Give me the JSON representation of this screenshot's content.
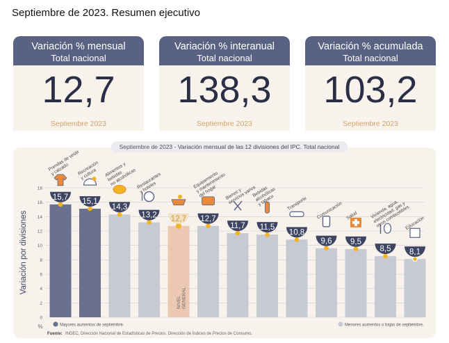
{
  "page_title": "Septiembre de 2023. Resumen ejecutivo",
  "cards": [
    {
      "title": "Variación % mensual",
      "subtitle": "Total nacional",
      "value": "12,7",
      "period": "Septiembre 2023"
    },
    {
      "title": "Variación % interanual",
      "subtitle": "Total nacional",
      "value": "138,3",
      "period": "Septiembre 2023"
    },
    {
      "title": "Variación % acumulada",
      "subtitle": "Total nacional",
      "value": "103,2",
      "period": "Septiembre 2023"
    }
  ],
  "chart_header": {
    "period": "Septiembre de 2023",
    "separator": " - ",
    "text": "Variación mensual de las 12 divisiones del IPC. Total nacional"
  },
  "chart_data": {
    "type": "bar",
    "title": "Septiembre de 2023 - Variación mensual de las 12 divisiones del IPC. Total nacional",
    "ylabel": "Variación por divisiones",
    "yunit": "%",
    "ylim": [
      0,
      18
    ],
    "yticks": [
      0,
      2,
      4,
      6,
      8,
      10,
      12,
      14,
      16,
      18
    ],
    "grid": true,
    "categories": [
      "Prendas de vestir y calzado",
      "Recreación y cultura",
      "Alimentos y bebidas no alcohólicas",
      "Restaurantes y hoteles",
      "NIVEL GENERAL",
      "Equipamiento y mantenimiento del hogar",
      "Bienes y servicios varios",
      "Bebidas alcohólicas y tabaco",
      "Transporte",
      "Comunicación",
      "Salud",
      "Vivienda, agua, electricidad, gas y otros combustibles",
      "Educación"
    ],
    "label_lines": [
      [
        "Prendas de vestir",
        "y calzado"
      ],
      [
        "Recreación",
        "y cultura"
      ],
      [
        "Alimentos y",
        "bebidas",
        "no alcohólicas"
      ],
      [
        "Restaurantes",
        "y hoteles"
      ],
      [],
      [
        "Equipamiento",
        "y mantenimiento",
        "del hogar"
      ],
      [
        "Bienes y",
        "servicios varios"
      ],
      [
        "Bebidas",
        "alcohólicas",
        "y tabaco"
      ],
      [
        "Transporte"
      ],
      [
        "Comunicación"
      ],
      [
        "Salud"
      ],
      [
        "Vivienda, agua,",
        "electricidad, gas y",
        "otros combustibles"
      ],
      [
        "Educación"
      ]
    ],
    "values": [
      15.7,
      15.1,
      14.3,
      13.2,
      12.7,
      12.7,
      11.7,
      11.5,
      10.8,
      9.6,
      9.5,
      8.5,
      8.1
    ],
    "value_labels": [
      "15,7",
      "15,1",
      "14,3",
      "13,2",
      "12,7",
      "12,7",
      "11,7",
      "11,5",
      "10,8",
      "9,6",
      "9,5",
      "8,5",
      "8,1"
    ],
    "groups": [
      "mayor",
      "mayor",
      "menor",
      "menor",
      "general",
      "menor",
      "menor",
      "menor",
      "menor",
      "menor",
      "menor",
      "menor",
      "menor"
    ],
    "general_label": [
      "NIVEL",
      "GENERAL"
    ],
    "colors": {
      "mayor": "#69718f",
      "menor": "#c7cad2",
      "general": "#ecc8b2",
      "marker": "#f2b424",
      "badge_dark": "#3d4563",
      "badge_general": "#f0e0c8"
    },
    "legend": [
      {
        "label": "Mayores aumentos de septiembre.",
        "color": "#69718f"
      },
      {
        "label": "Menores aumentos o bajas de septiembre.",
        "color": "#c7cad2"
      }
    ],
    "source_label": "Fuente:",
    "source": "INDEC, Dirección Nacional de Estadísticas de Precios. Dirección de Índices de Precios de Consumo.",
    "icons": [
      "tshirt-icon",
      "umbrella-icon",
      "chicken-icon",
      "plate-icon",
      "basket-icon",
      "toolbox-icon",
      "scissors-icon",
      "bottle-icon",
      "car-icon",
      "phone-icon",
      "first-aid-icon",
      "bulb-icon",
      "book-icon"
    ]
  }
}
